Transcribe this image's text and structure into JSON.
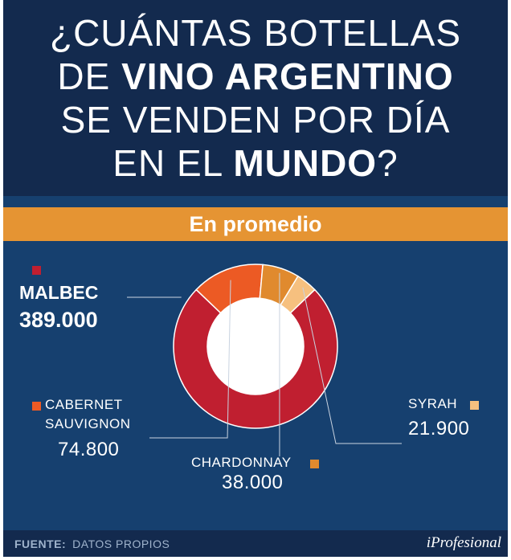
{
  "title": {
    "line1": "¿CUÁNTAS BOTELLAS",
    "line2_pre": "DE ",
    "line2_bold": "VINO ARGENTINO",
    "line3": "SE VENDEN POR DÍA",
    "line4_pre": "EN EL ",
    "line4_bold": "MUNDO",
    "line4_post": "?"
  },
  "subtitle": "En promedio",
  "footer": {
    "source_label": "FUENTE:",
    "source_value": "DATOS PROPIOS",
    "brand": "iProfesional"
  },
  "chart_data": {
    "type": "pie",
    "style": "donut",
    "categories": [
      "MALBEC",
      "CABERNET SAUVIGNON",
      "CHARDONNAY",
      "SYRAH"
    ],
    "values": [
      389000,
      74800,
      38000,
      21900
    ],
    "value_labels": [
      "389.000",
      "74.800",
      "38.000",
      "21.900"
    ],
    "name_lines": [
      [
        "MALBEC"
      ],
      [
        "CABERNET",
        "SAUVIGNON"
      ],
      [
        "CHARDONNAY"
      ],
      [
        "SYRAH"
      ]
    ],
    "colors": [
      "#c01f30",
      "#ec5a24",
      "#e08a2e",
      "#f6c07f"
    ]
  }
}
